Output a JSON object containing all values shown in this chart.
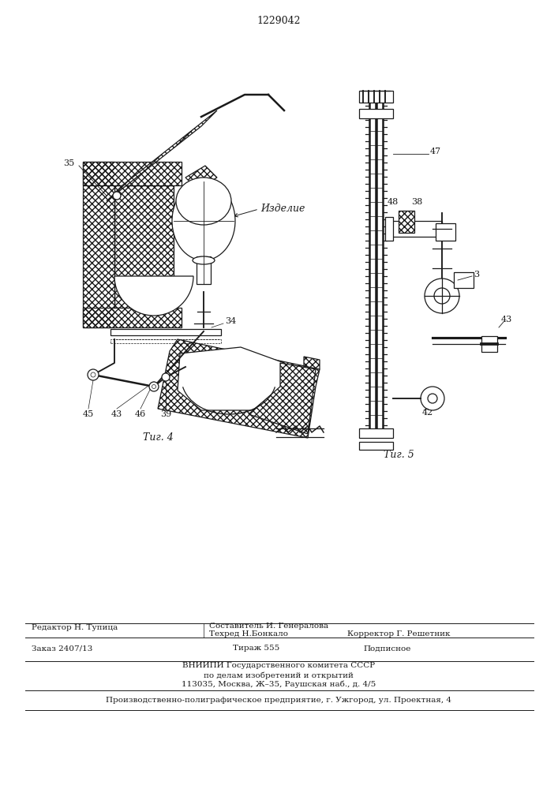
{
  "patent_number": "1229042",
  "fig4_label": "Τиг. 4",
  "fig5_label": "Τиг. 5",
  "izdelie_label": "Изделие",
  "label_35": "35",
  "label_34": "34",
  "label_45": "45",
  "label_43": "43",
  "label_46": "46",
  "label_39": "39",
  "label_47": "47",
  "label_48": "48",
  "label_38": "38",
  "label_3": "3",
  "label_43b": "43",
  "label_42": "42",
  "editor_line": "Редактор Н. Тупица",
  "sostavitel_line": "Составитель И. Генералова",
  "tehred_line": "Техред Н.Бонкало",
  "korrektor_line": "Корректор Г. Решетник",
  "zakaz_line": "Заказ 2407/13",
  "tirazh_line": "Тираж 555",
  "podpisnoe_line": "Подписное",
  "vnipi_line": "ВНИИПИ Государственного комитета СССР",
  "po_delam_line": "по делам изобретений и открытий",
  "address_line": "113035, Москва, Ж–35, Раушская наб., д. 4/5",
  "proizv_line": "Производственно-полиграфическое предприятие, г. Ужгород, ул. Проектная, 4",
  "bg_color": "#ffffff",
  "line_color": "#1a1a1a",
  "font_size_labels": 8,
  "font_size_caption": 9,
  "font_size_footer": 7.5,
  "font_size_patent": 9
}
